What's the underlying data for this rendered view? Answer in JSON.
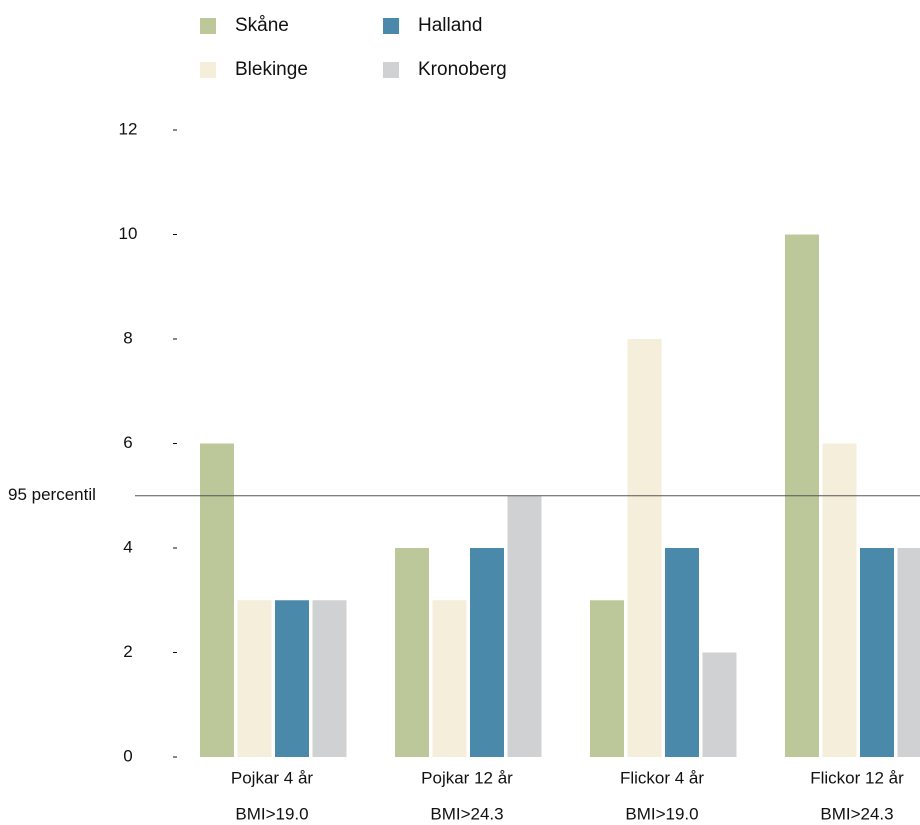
{
  "chart_data": {
    "type": "bar",
    "categories": [
      "Pojkar 4 år",
      "Pojkar 12 år",
      "Flickor 4 år",
      "Flickor 12 år"
    ],
    "category_sublabels": [
      "BMI>19.0",
      "BMI>24.3",
      "BMI>19.0",
      "BMI>24.3"
    ],
    "series": [
      {
        "name": "Skåne",
        "color": "#bdc89a",
        "values": [
          6,
          4,
          3,
          10
        ]
      },
      {
        "name": "Blekinge",
        "color": "#f5eedb",
        "values": [
          3,
          3,
          8,
          6
        ]
      },
      {
        "name": "Halland",
        "color": "#4a89aa",
        "values": [
          3,
          4,
          4,
          4
        ]
      },
      {
        "name": "Kronoberg",
        "color": "#d0d1d3",
        "values": [
          3,
          5,
          2,
          4
        ]
      }
    ],
    "ylim": [
      0,
      12
    ],
    "yticks": [
      0,
      2,
      4,
      6,
      8,
      10,
      12
    ],
    "reference_line": {
      "value": 5,
      "label": "95 percentil"
    }
  }
}
